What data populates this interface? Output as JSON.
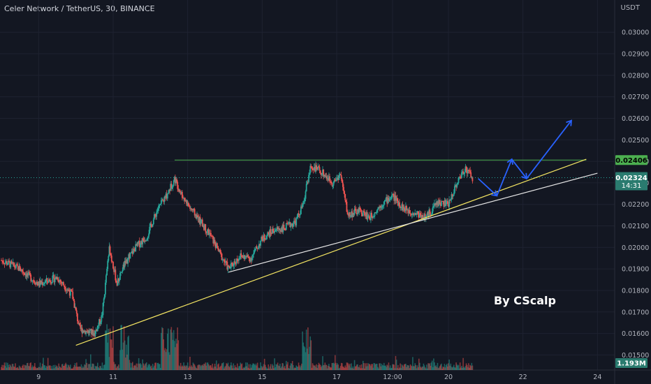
{
  "header": {
    "title": "Celer Network / TetherUS, 30, BINANCE",
    "currency": "USDT"
  },
  "watermark": "By CScalp",
  "colors": {
    "background": "#131722",
    "up": "#26a69a",
    "down": "#ef5350",
    "resistance": "#4caf50",
    "support_yellow": "#f5e663",
    "support_white": "#e6e6e6",
    "projection": "#2962ff",
    "current_price": "#2a7b6f"
  },
  "chart_data": {
    "type": "candlestick",
    "symbol": "CELR/USDT",
    "interval": "30",
    "exchange": "BINANCE",
    "x_ticks": [
      "9",
      "11",
      "13",
      "15",
      "17",
      "12:00",
      "20",
      "22",
      "24"
    ],
    "y_ticks": [
      "0.03000",
      "0.02900",
      "0.02800",
      "0.02700",
      "0.02600",
      "0.02500",
      "0.02400",
      "0.02300",
      "0.02200",
      "0.02100",
      "0.02000",
      "0.01900",
      "0.01800",
      "0.01700",
      "0.01600",
      "0.01500"
    ],
    "ylim": [
      0.0143,
      0.0315
    ],
    "price_path": [
      {
        "t": 8.0,
        "p": 0.0194
      },
      {
        "t": 8.5,
        "p": 0.019
      },
      {
        "t": 9.0,
        "p": 0.0183
      },
      {
        "t": 9.5,
        "p": 0.0186
      },
      {
        "t": 9.9,
        "p": 0.0178
      },
      {
        "t": 10.1,
        "p": 0.0162
      },
      {
        "t": 10.5,
        "p": 0.016
      },
      {
        "t": 10.7,
        "p": 0.0168
      },
      {
        "t": 10.9,
        "p": 0.02
      },
      {
        "t": 11.1,
        "p": 0.0183
      },
      {
        "t": 11.3,
        "p": 0.0192
      },
      {
        "t": 11.6,
        "p": 0.02
      },
      {
        "t": 11.9,
        "p": 0.0205
      },
      {
        "t": 12.2,
        "p": 0.0218
      },
      {
        "t": 12.4,
        "p": 0.0223
      },
      {
        "t": 12.65,
        "p": 0.0232
      },
      {
        "t": 12.8,
        "p": 0.0226
      },
      {
        "t": 13.0,
        "p": 0.022
      },
      {
        "t": 13.3,
        "p": 0.0213
      },
      {
        "t": 13.6,
        "p": 0.0206
      },
      {
        "t": 13.9,
        "p": 0.0196
      },
      {
        "t": 14.1,
        "p": 0.019
      },
      {
        "t": 14.4,
        "p": 0.0196
      },
      {
        "t": 14.7,
        "p": 0.0195
      },
      {
        "t": 15.0,
        "p": 0.0204
      },
      {
        "t": 15.3,
        "p": 0.0208
      },
      {
        "t": 15.6,
        "p": 0.0209
      },
      {
        "t": 15.9,
        "p": 0.0212
      },
      {
        "t": 16.1,
        "p": 0.022
      },
      {
        "t": 16.3,
        "p": 0.0238
      },
      {
        "t": 16.6,
        "p": 0.0235
      },
      {
        "t": 16.9,
        "p": 0.023
      },
      {
        "t": 17.1,
        "p": 0.0234
      },
      {
        "t": 17.3,
        "p": 0.0215
      },
      {
        "t": 17.6,
        "p": 0.0217
      },
      {
        "t": 17.9,
        "p": 0.0214
      },
      {
        "t": 18.2,
        "p": 0.022
      },
      {
        "t": 18.5,
        "p": 0.0224
      },
      {
        "t": 18.8,
        "p": 0.0218
      },
      {
        "t": 19.1,
        "p": 0.0216
      },
      {
        "t": 19.4,
        "p": 0.0214
      },
      {
        "t": 19.7,
        "p": 0.0221
      },
      {
        "t": 20.0,
        "p": 0.022
      },
      {
        "t": 20.2,
        "p": 0.0229
      },
      {
        "t": 20.45,
        "p": 0.0237
      },
      {
        "t": 20.65,
        "p": 0.02324
      }
    ],
    "volume_label": "1.193M",
    "volume_spike_days": [
      10.9,
      11.3,
      12.4,
      12.65,
      16.2
    ],
    "horizontal_lines": [
      {
        "name": "resistance",
        "price": 0.02406,
        "t_start": 12.65,
        "t_end": 23.7,
        "label": "0.02406"
      },
      {
        "name": "last-price",
        "price": 0.02324,
        "dotted": true,
        "label": "0.02324",
        "countdown": "14:31"
      }
    ],
    "trendlines": [
      {
        "name": "support-yellow",
        "points": [
          [
            10.0,
            0.01545
          ],
          [
            23.7,
            0.0241
          ]
        ]
      },
      {
        "name": "support-white",
        "points": [
          [
            14.1,
            0.01885
          ],
          [
            24.0,
            0.02345
          ]
        ]
      }
    ],
    "projection_path": [
      [
        20.8,
        0.0232
      ],
      [
        21.3,
        0.0224
      ],
      [
        21.7,
        0.0241
      ],
      [
        22.1,
        0.0232
      ],
      [
        23.3,
        0.0259
      ]
    ]
  }
}
